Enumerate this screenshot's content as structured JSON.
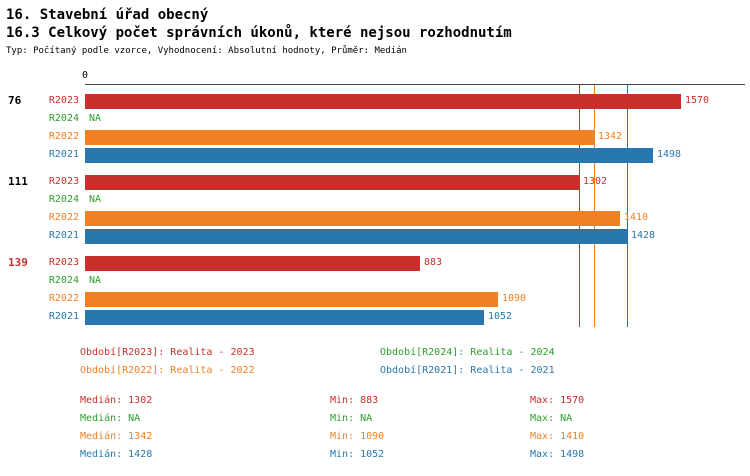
{
  "header": {
    "title": "16. Stavební úřad obecný",
    "subtitle": "16.3 Celkový počet správních úkonů, které nejsou rozhodnutím",
    "meta": "Typ: Počítaný podle vzorce, Vyhodnocení: Absolutní hodnoty, Průměr: Medián"
  },
  "chart_data": {
    "type": "bar",
    "orientation": "horizontal",
    "title": "16.3 Celkový počet správních úkonů, které nejsou rozhodnutím",
    "x_axis": {
      "zero_label": "0",
      "xlim": [
        0,
        1740
      ],
      "grid": false
    },
    "series_order": [
      "R2023",
      "R2024",
      "R2022",
      "R2021"
    ],
    "series_colors": {
      "R2023": "#c9302c",
      "R2024": "#2ca02c",
      "R2022": "#f08122",
      "R2021": "#2878af"
    },
    "groups": [
      {
        "label": "76",
        "label_color": "#000000",
        "bars": [
          {
            "series": "R2023",
            "value": 1570,
            "value_label": "1570"
          },
          {
            "series": "R2024",
            "value": null,
            "value_label": "NA"
          },
          {
            "series": "R2022",
            "value": 1342,
            "value_label": "1342"
          },
          {
            "series": "R2021",
            "value": 1498,
            "value_label": "1498"
          }
        ]
      },
      {
        "label": "111",
        "label_color": "#000000",
        "bars": [
          {
            "series": "R2023",
            "value": 1302,
            "value_label": "1302"
          },
          {
            "series": "R2024",
            "value": null,
            "value_label": "NA"
          },
          {
            "series": "R2022",
            "value": 1410,
            "value_label": "1410"
          },
          {
            "series": "R2021",
            "value": 1428,
            "value_label": "1428"
          }
        ]
      },
      {
        "label": "139",
        "label_color": "#c9302c",
        "bars": [
          {
            "series": "R2023",
            "value": 883,
            "value_label": "883"
          },
          {
            "series": "R2024",
            "value": null,
            "value_label": "NA"
          },
          {
            "series": "R2022",
            "value": 1090,
            "value_label": "1090"
          },
          {
            "series": "R2021",
            "value": 1052,
            "value_label": "1052"
          }
        ]
      }
    ],
    "median_lines": [
      {
        "series": "R2023",
        "value": 1302
      },
      {
        "series": "R2022",
        "value": 1342
      },
      {
        "series": "R2021",
        "value": 1428
      }
    ]
  },
  "legend": [
    {
      "series": "R2023",
      "label": "Období[R2023]: Realita - 2023",
      "color": "#c9302c"
    },
    {
      "series": "R2024",
      "label": "Období[R2024]: Realita - 2024",
      "color": "#2ca02c"
    },
    {
      "series": "R2022",
      "label": "Období[R2022]: Realita - 2022",
      "color": "#f08122"
    },
    {
      "series": "R2021",
      "label": "Období[R2021]: Realita - 2021",
      "color": "#2878af"
    }
  ],
  "stats": [
    {
      "series": "R2023",
      "color": "#c9302c",
      "median": "Medián: 1302",
      "min": "Min: 883",
      "max": "Max: 1570"
    },
    {
      "series": "R2024",
      "color": "#2ca02c",
      "median": "Medián: NA",
      "min": "Min: NA",
      "max": "Max: NA"
    },
    {
      "series": "R2022",
      "color": "#f08122",
      "median": "Medián: 1342",
      "min": "Min: 1090",
      "max": "Max: 1410"
    },
    {
      "series": "R2021",
      "color": "#2878af",
      "median": "Medián: 1428",
      "min": "Min: 1052",
      "max": "Max: 1498"
    }
  ]
}
